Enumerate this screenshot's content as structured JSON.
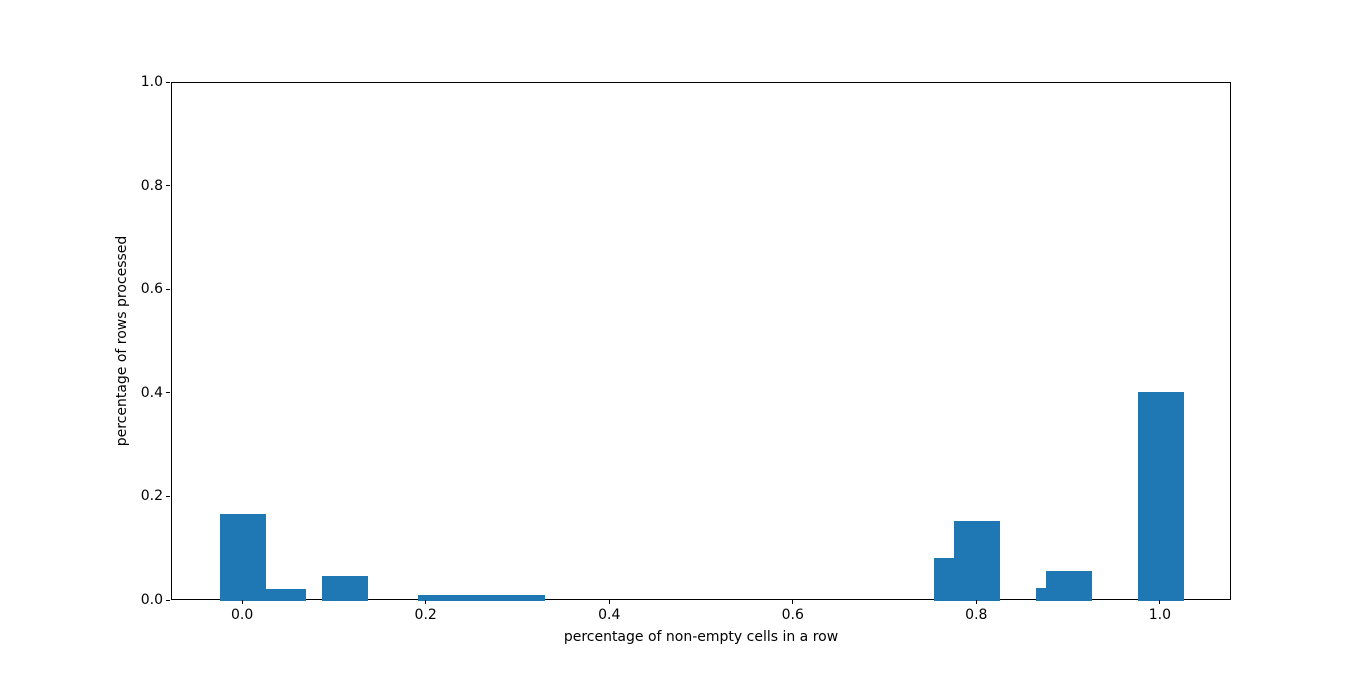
{
  "chart_data": {
    "type": "bar",
    "subtype": "histogram-of-percentages",
    "title": "",
    "xlabel": "percentage of non-empty cells in a row",
    "ylabel": "percentage of rows processed",
    "xlim": [
      -0.0775,
      1.0775
    ],
    "ylim": [
      0,
      1.0
    ],
    "grid": false,
    "legend": null,
    "bar_color": "#1f77b4",
    "axis_color": "#000000",
    "background_color": "#ffffff",
    "xticks": {
      "values": [
        0.0,
        0.2,
        0.4,
        0.6,
        0.8,
        1.0
      ],
      "labels": [
        "0.0",
        "0.2",
        "0.4",
        "0.6",
        "0.8",
        "1.0"
      ]
    },
    "yticks": {
      "values": [
        0.0,
        0.2,
        0.4,
        0.6,
        0.8,
        1.0
      ],
      "labels": [
        "0.0",
        "0.2",
        "0.4",
        "0.6",
        "0.8",
        "1.0"
      ]
    },
    "bars": [
      {
        "x_left": -0.025,
        "x_right": 0.025,
        "height": 0.168
      },
      {
        "x_left": 0.025,
        "x_right": 0.068,
        "height": 0.024
      },
      {
        "x_left": 0.086,
        "x_right": 0.136,
        "height": 0.049
      },
      {
        "x_left": 0.191,
        "x_right": 0.329,
        "height": 0.011
      },
      {
        "x_left": 0.753,
        "x_right": 0.775,
        "height": 0.083
      },
      {
        "x_left": 0.775,
        "x_right": 0.825,
        "height": 0.154
      },
      {
        "x_left": 0.864,
        "x_right": 0.875,
        "height": 0.025
      },
      {
        "x_left": 0.875,
        "x_right": 0.925,
        "height": 0.058
      },
      {
        "x_left": 0.975,
        "x_right": 1.025,
        "height": 0.404
      }
    ]
  }
}
